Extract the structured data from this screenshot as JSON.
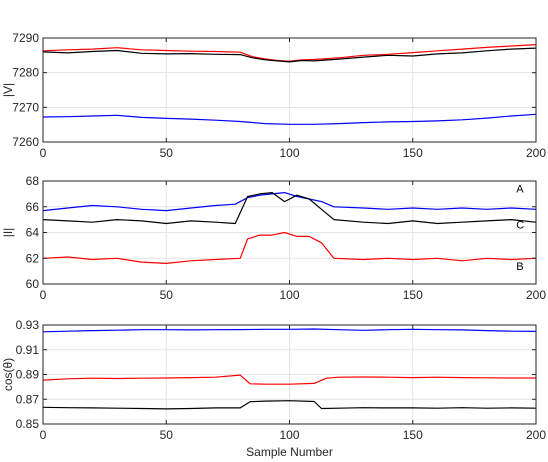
{
  "chart_data": [
    {
      "type": "line",
      "ylabel": "|V|",
      "xlabel": "",
      "xlim": [
        0,
        200
      ],
      "ylim": [
        7260,
        7290
      ],
      "xticks": [
        0,
        50,
        100,
        150,
        200
      ],
      "yticks": [
        7260,
        7270,
        7280,
        7290
      ],
      "grid": true,
      "series": [
        {
          "color": "#ff0000",
          "x": [
            0,
            10,
            20,
            30,
            40,
            50,
            60,
            70,
            80,
            85,
            90,
            95,
            100,
            105,
            110,
            120,
            130,
            140,
            150,
            160,
            170,
            180,
            190,
            200
          ],
          "y": [
            7286.3,
            7286.6,
            7286.8,
            7287.2,
            7286.6,
            7286.4,
            7286.2,
            7286.1,
            7285.9,
            7284.6,
            7284.0,
            7283.5,
            7283.3,
            7283.7,
            7283.8,
            7284.3,
            7285.0,
            7285.3,
            7285.8,
            7286.3,
            7286.8,
            7287.3,
            7287.7,
            7288.1
          ]
        },
        {
          "color": "#000000",
          "x": [
            0,
            10,
            20,
            30,
            40,
            50,
            60,
            70,
            80,
            85,
            90,
            95,
            100,
            105,
            110,
            120,
            130,
            140,
            150,
            160,
            170,
            180,
            190,
            200
          ],
          "y": [
            7286.0,
            7285.7,
            7286.1,
            7286.4,
            7285.6,
            7285.4,
            7285.5,
            7285.3,
            7285.2,
            7284.3,
            7283.7,
            7283.4,
            7283.1,
            7283.5,
            7283.4,
            7283.9,
            7284.5,
            7285.0,
            7284.8,
            7285.4,
            7285.7,
            7286.3,
            7286.8,
            7287.1
          ]
        },
        {
          "color": "#0000ff",
          "x": [
            0,
            10,
            20,
            30,
            40,
            50,
            60,
            70,
            80,
            90,
            100,
            110,
            120,
            130,
            140,
            150,
            160,
            170,
            180,
            190,
            200
          ],
          "y": [
            7267.2,
            7267.3,
            7267.5,
            7267.7,
            7267.1,
            7266.8,
            7266.6,
            7266.3,
            7265.9,
            7265.3,
            7265.1,
            7265.1,
            7265.3,
            7265.6,
            7265.8,
            7265.9,
            7266.1,
            7266.4,
            7266.9,
            7267.5,
            7268.0
          ]
        }
      ]
    },
    {
      "type": "line",
      "ylabel": "|I|",
      "xlabel": "",
      "xlim": [
        0,
        200
      ],
      "ylim": [
        60,
        68
      ],
      "xticks": [
        0,
        50,
        100,
        150,
        200
      ],
      "yticks": [
        60,
        62,
        64,
        66,
        68
      ],
      "grid": true,
      "annotations": [
        {
          "text": "A",
          "x": 192,
          "y": 67.1
        },
        {
          "text": "C",
          "x": 192,
          "y": 64.3
        },
        {
          "text": "B",
          "x": 192,
          "y": 61.1
        }
      ],
      "series": [
        {
          "color": "#0000ff",
          "x": [
            0,
            10,
            20,
            30,
            40,
            50,
            60,
            70,
            78,
            83,
            88,
            93,
            98,
            103,
            108,
            113,
            118,
            130,
            140,
            150,
            160,
            170,
            180,
            190,
            200
          ],
          "y": [
            65.7,
            65.9,
            66.1,
            66.0,
            65.8,
            65.7,
            65.9,
            66.1,
            66.2,
            66.7,
            66.9,
            67.0,
            67.1,
            66.8,
            66.6,
            66.4,
            66.0,
            65.9,
            65.8,
            65.9,
            65.8,
            65.9,
            65.8,
            65.9,
            65.8
          ]
        },
        {
          "color": "#000000",
          "x": [
            0,
            10,
            20,
            30,
            40,
            50,
            60,
            70,
            78,
            83,
            88,
            93,
            98,
            103,
            108,
            113,
            118,
            130,
            140,
            150,
            160,
            170,
            180,
            190,
            200
          ],
          "y": [
            65.0,
            64.9,
            64.8,
            65.0,
            64.9,
            64.7,
            64.9,
            64.8,
            64.7,
            66.8,
            67.0,
            67.1,
            66.4,
            66.9,
            66.6,
            65.8,
            65.0,
            64.8,
            64.7,
            64.9,
            64.7,
            64.8,
            64.9,
            65.0,
            64.8
          ]
        },
        {
          "color": "#ff0000",
          "x": [
            0,
            10,
            20,
            30,
            40,
            50,
            60,
            70,
            80,
            83,
            88,
            93,
            98,
            103,
            108,
            113,
            118,
            130,
            140,
            150,
            160,
            170,
            180,
            190,
            200
          ],
          "y": [
            62.0,
            62.1,
            61.9,
            62.0,
            61.7,
            61.6,
            61.8,
            61.9,
            62.0,
            63.5,
            63.8,
            63.8,
            64.0,
            63.7,
            63.7,
            63.2,
            62.0,
            61.9,
            62.0,
            61.9,
            62.0,
            61.8,
            62.0,
            61.9,
            62.0
          ]
        }
      ]
    },
    {
      "type": "line",
      "ylabel": "cos(θ)",
      "xlabel": "Sample Number",
      "xlim": [
        0,
        200
      ],
      "ylim": [
        0.85,
        0.93
      ],
      "xticks": [
        0,
        50,
        100,
        150,
        200
      ],
      "yticks": [
        0.85,
        0.87,
        0.89,
        0.91,
        0.93
      ],
      "grid": true,
      "series": [
        {
          "color": "#0000ff",
          "x": [
            0,
            10,
            20,
            30,
            40,
            50,
            60,
            70,
            80,
            90,
            100,
            110,
            120,
            130,
            140,
            150,
            160,
            170,
            180,
            190,
            200
          ],
          "y": [
            0.9245,
            0.925,
            0.9255,
            0.9258,
            0.9262,
            0.9262,
            0.926,
            0.9262,
            0.9263,
            0.9265,
            0.9265,
            0.9268,
            0.9262,
            0.9257,
            0.9262,
            0.9265,
            0.9262,
            0.926,
            0.9255,
            0.925,
            0.9248
          ]
        },
        {
          "color": "#ff0000",
          "x": [
            0,
            10,
            20,
            30,
            40,
            50,
            60,
            70,
            80,
            84,
            90,
            100,
            110,
            115,
            120,
            130,
            140,
            150,
            160,
            170,
            180,
            190,
            200
          ],
          "y": [
            0.8855,
            0.8865,
            0.887,
            0.8868,
            0.887,
            0.8872,
            0.8875,
            0.8878,
            0.8895,
            0.8825,
            0.8822,
            0.8822,
            0.8828,
            0.887,
            0.8878,
            0.888,
            0.8878,
            0.8875,
            0.8878,
            0.8875,
            0.8873,
            0.8872,
            0.8872
          ]
        },
        {
          "color": "#000000",
          "x": [
            0,
            10,
            20,
            30,
            40,
            50,
            60,
            70,
            80,
            84,
            90,
            100,
            110,
            113,
            120,
            130,
            140,
            150,
            160,
            170,
            180,
            190,
            200
          ],
          "y": [
            0.8635,
            0.8632,
            0.863,
            0.8628,
            0.8625,
            0.8622,
            0.8625,
            0.863,
            0.863,
            0.868,
            0.8685,
            0.8688,
            0.8682,
            0.8625,
            0.8628,
            0.8632,
            0.863,
            0.863,
            0.8628,
            0.8632,
            0.8628,
            0.863,
            0.8628
          ]
        }
      ]
    }
  ]
}
